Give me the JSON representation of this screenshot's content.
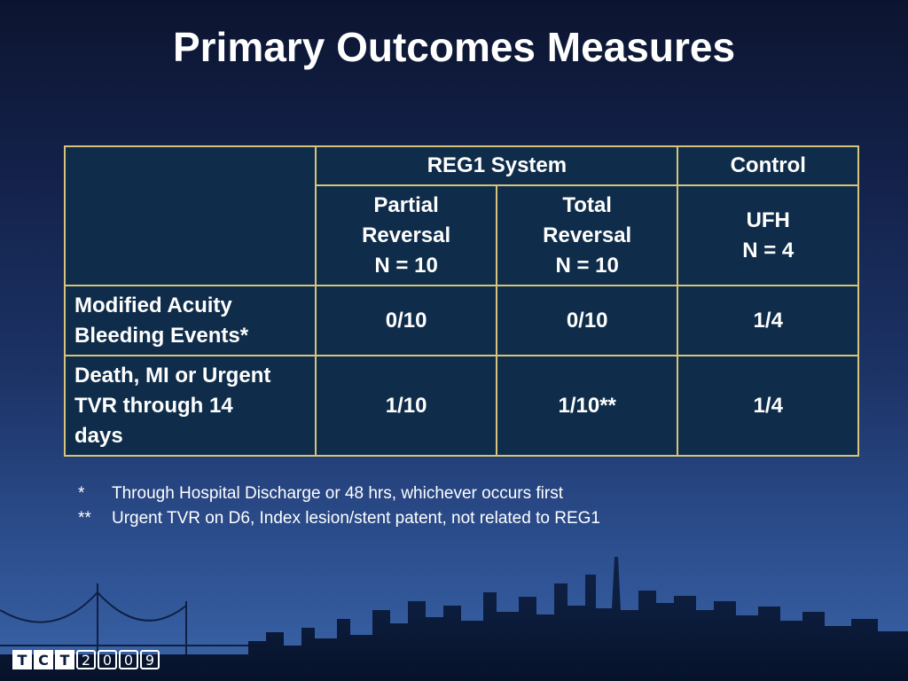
{
  "slide": {
    "title": "Primary Outcomes Measures"
  },
  "table": {
    "group_headers": {
      "reg1": "REG1 System",
      "control": "Control"
    },
    "sub_headers": {
      "partial": [
        "Partial",
        "Reversal",
        "N = 10"
      ],
      "total": [
        "Total",
        "Reversal",
        "N = 10"
      ],
      "ufh": [
        "UFH",
        "N = 4"
      ]
    },
    "rows": [
      {
        "label": [
          "Modified Acuity",
          "Bleeding Events*"
        ],
        "partial": "0/10",
        "total": "0/10",
        "ufh": "1/4"
      },
      {
        "label": [
          "Death, MI or Urgent",
          "TVR through 14",
          "days"
        ],
        "partial": "1/10",
        "total": "1/10**",
        "ufh": "1/4"
      }
    ]
  },
  "footnotes": [
    {
      "mark": "*",
      "text": "Through Hospital Discharge or 48 hrs, whichever occurs first"
    },
    {
      "mark": "**",
      "text": "Urgent TVR on D6, Index lesion/stent patent, not related to REG1"
    }
  ],
  "logo": {
    "letters": [
      "T",
      "C",
      "T"
    ],
    "year_digits": [
      "2",
      "0",
      "0",
      "9"
    ]
  },
  "colors": {
    "table_border": "#d6c47a",
    "table_cell": "#0f2d4a",
    "text": "#ffffff"
  }
}
